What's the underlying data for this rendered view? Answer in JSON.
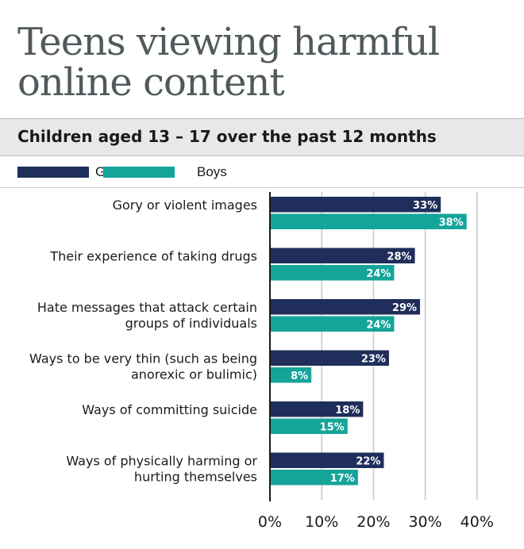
{
  "title": "Teens viewing harmful online content",
  "subtitle": "Children aged 13 – 17 over the past 12 months",
  "colors": {
    "girls": "#1f2e5a",
    "boys": "#15a49a",
    "grid": "#c8c8c8",
    "axis": "#1a1a1a"
  },
  "chart_data": {
    "type": "bar",
    "orientation": "horizontal",
    "categories": [
      [
        "Gory or violent images"
      ],
      [
        "Their experience of taking drugs"
      ],
      [
        "Hate messages that attack certain",
        "groups of individuals"
      ],
      [
        "Ways to be very thin (such as being",
        "anorexic or bulimic)"
      ],
      [
        "Ways of committing suicide"
      ],
      [
        "Ways of physically harming or",
        "hurting themselves"
      ]
    ],
    "series": [
      {
        "name": "Girls",
        "values": [
          33,
          28,
          29,
          23,
          18,
          22
        ]
      },
      {
        "name": "Boys",
        "values": [
          38,
          24,
          24,
          8,
          15,
          17
        ]
      }
    ],
    "value_suffix": "%",
    "xlim": [
      0,
      40
    ],
    "xticks": [
      "0%",
      "10%",
      "20%",
      "30%",
      "40%"
    ],
    "grid": true,
    "legend": "top-left"
  }
}
